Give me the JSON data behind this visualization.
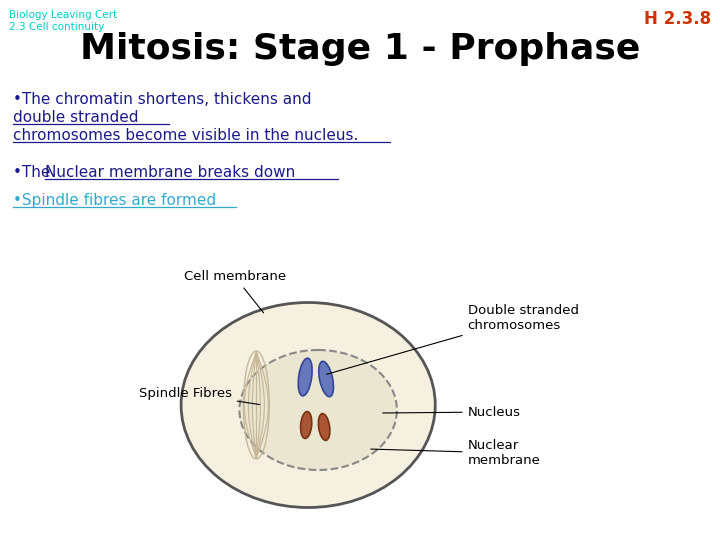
{
  "bg_color": "#ffffff",
  "title_top_left_line1": "Biology Leaving Cert",
  "title_top_left_line2": "2.3 Cell continuity",
  "title_top_left_color": "#00cccc",
  "title_top_right": "H 2.3.8",
  "title_top_right_color": "#cc3300",
  "main_title": "Mitosis: Stage 1 - Prophase",
  "main_title_color": "#000000",
  "bullet1_plain": "•The chromatin shortens, thickens and",
  "bullet1_underline1": "double stranded",
  "bullet1_underline2": "chromosomes become visible in the nucleus.",
  "bullet1_color": "#1a1a8c",
  "bullet2_plain": "•The ",
  "bullet2_underline": "Nuclear membrane breaks down",
  "bullet2_color": "#1a1a8c",
  "bullet3": "•Spindle fibres are formed",
  "bullet3_color": "#33aacc",
  "label_cell_membrane": "Cell membrane",
  "label_double_stranded": "Double stranded\nchromosomes",
  "label_spindle_fibres": "Spindle Fibres",
  "label_nucleus": "Nucleus",
  "label_nuclear_membrane": "Nuclear\nmembrane",
  "cell_fill": "#f5f0e0",
  "cell_edge": "#555555",
  "nucleus_fill": "#eae6d2",
  "nucleus_edge_color": "#888888",
  "chr_blue_color": "#6677bb",
  "chr_blue_edge": "#334499",
  "chr_brown_color": "#aa5533",
  "chr_brown_edge": "#773311",
  "spindle_color": "#c8b89a"
}
